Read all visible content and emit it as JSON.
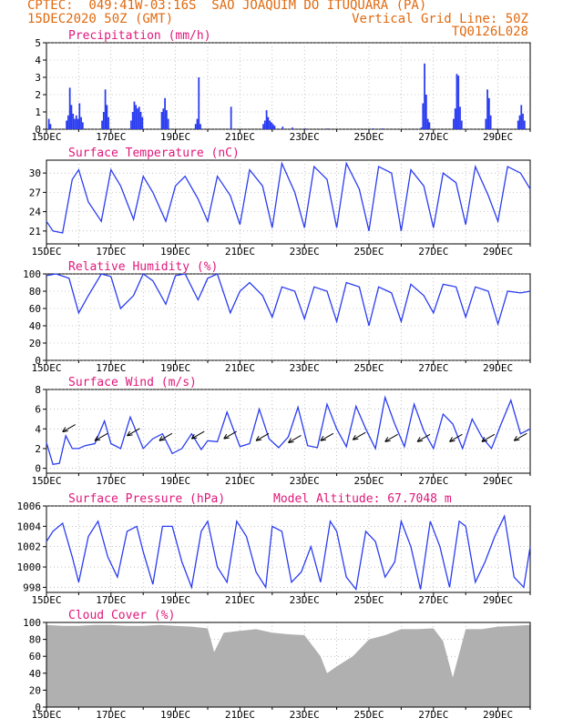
{
  "header": {
    "left1": "CPTEC:  049:41W-03:16S  SAO JOAQUIM DO ITUQUARA (PA)",
    "left2": "15DEC2020 50Z (GMT)",
    "right2": "Vertical Grid Line: 50Z",
    "right3": "TQ0126L028"
  },
  "colors": {
    "header": "#e06a10",
    "title": "#e0187a",
    "line": "#2a3cf0",
    "cloud": "#b0b0b0",
    "grid": "#9a9a9a"
  },
  "x_labels": [
    "15DEC",
    "17DEC",
    "19DEC",
    "21DEC",
    "23DEC",
    "25DEC",
    "27DEC",
    "29DEC"
  ],
  "chart_data": [
    {
      "type": "bar",
      "title": "Precipitation (mm/h)",
      "ylim": [
        0,
        5
      ],
      "yticks": [
        0,
        1,
        2,
        3,
        4,
        5
      ],
      "x_range": [
        0,
        15
      ],
      "bars": [
        [
          0.05,
          0.6
        ],
        [
          0.1,
          0.3
        ],
        [
          0.6,
          0.5
        ],
        [
          0.65,
          0.8
        ],
        [
          0.7,
          2.4
        ],
        [
          0.75,
          1.4
        ],
        [
          0.8,
          0.9
        ],
        [
          0.85,
          0.6
        ],
        [
          0.9,
          0.8
        ],
        [
          0.95,
          0.6
        ],
        [
          1.0,
          1.5
        ],
        [
          1.05,
          0.7
        ],
        [
          1.1,
          0.4
        ],
        [
          1.7,
          0.5
        ],
        [
          1.75,
          1.0
        ],
        [
          1.8,
          2.3
        ],
        [
          1.85,
          1.4
        ],
        [
          1.9,
          0.7
        ],
        [
          2.6,
          0.5
        ],
        [
          2.65,
          1.0
        ],
        [
          2.7,
          1.6
        ],
        [
          2.75,
          1.4
        ],
        [
          2.8,
          1.2
        ],
        [
          2.85,
          1.3
        ],
        [
          2.9,
          1.0
        ],
        [
          2.95,
          0.7
        ],
        [
          3.55,
          1.0
        ],
        [
          3.6,
          1.2
        ],
        [
          3.65,
          1.8
        ],
        [
          3.7,
          1.1
        ],
        [
          3.75,
          0.6
        ],
        [
          4.6,
          0.3
        ],
        [
          4.65,
          0.6
        ],
        [
          4.7,
          3.0
        ],
        [
          4.75,
          0.3
        ],
        [
          5.7,
          1.3
        ],
        [
          6.7,
          0.3
        ],
        [
          6.75,
          0.5
        ],
        [
          6.8,
          1.1
        ],
        [
          6.85,
          0.7
        ],
        [
          6.9,
          0.5
        ],
        [
          6.95,
          0.4
        ],
        [
          7.0,
          0.3
        ],
        [
          7.05,
          0.2
        ],
        [
          7.3,
          0.15
        ],
        [
          7.6,
          0.1
        ],
        [
          8.0,
          0.05
        ],
        [
          8.7,
          0.05
        ],
        [
          10.1,
          0.05
        ],
        [
          10.4,
          0.05
        ],
        [
          11.6,
          0.1
        ],
        [
          11.65,
          1.5
        ],
        [
          11.7,
          3.8
        ],
        [
          11.75,
          2.0
        ],
        [
          11.8,
          0.6
        ],
        [
          11.85,
          0.4
        ],
        [
          12.6,
          0.6
        ],
        [
          12.65,
          1.2
        ],
        [
          12.7,
          3.2
        ],
        [
          12.75,
          3.1
        ],
        [
          12.8,
          1.3
        ],
        [
          12.85,
          0.5
        ],
        [
          13.6,
          0.6
        ],
        [
          13.65,
          2.3
        ],
        [
          13.7,
          1.8
        ],
        [
          13.75,
          0.8
        ],
        [
          14.6,
          0.5
        ],
        [
          14.65,
          0.8
        ],
        [
          14.7,
          1.4
        ],
        [
          14.75,
          0.9
        ],
        [
          14.8,
          0.5
        ]
      ]
    },
    {
      "type": "line",
      "title": "Surface Temperature (nC)",
      "ylim": [
        19,
        32
      ],
      "yticks": [
        21,
        24,
        27,
        30
      ],
      "x": [
        0,
        0.2,
        0.5,
        0.8,
        1.0,
        1.3,
        1.7,
        2.0,
        2.3,
        2.7,
        3.0,
        3.3,
        3.7,
        4.0,
        4.3,
        4.7,
        5.0,
        5.3,
        5.7,
        6.0,
        6.3,
        6.7,
        7.0,
        7.3,
        7.7,
        8.0,
        8.3,
        8.7,
        9.0,
        9.3,
        9.7,
        10.0,
        10.3,
        10.7,
        11.0,
        11.3,
        11.7,
        12.0,
        12.3,
        12.7,
        13.0,
        13.3,
        13.7,
        14.0,
        14.3,
        14.7,
        15.0
      ],
      "y": [
        22.5,
        21.0,
        20.7,
        29.0,
        30.5,
        25.5,
        22.5,
        30.5,
        28.0,
        22.8,
        29.5,
        27.0,
        22.5,
        28.0,
        29.5,
        26.0,
        22.5,
        29.5,
        26.5,
        22.0,
        30.5,
        28.0,
        21.5,
        31.5,
        27.0,
        21.5,
        31.0,
        29.0,
        21.5,
        31.5,
        27.5,
        21.0,
        31.0,
        30.0,
        21.0,
        30.5,
        28.0,
        21.5,
        30.0,
        28.5,
        22.0,
        31.0,
        26.5,
        22.5,
        31.0,
        30.0,
        27.5
      ]
    },
    {
      "type": "line",
      "title": "Relative Humidity (%)",
      "ylim": [
        0,
        100
      ],
      "yticks": [
        0,
        20,
        40,
        60,
        80,
        100
      ],
      "x": [
        0,
        0.3,
        0.7,
        1.0,
        1.3,
        1.7,
        2.0,
        2.3,
        2.7,
        3.0,
        3.3,
        3.7,
        4.0,
        4.3,
        4.7,
        5.0,
        5.3,
        5.7,
        6.0,
        6.3,
        6.7,
        7.0,
        7.3,
        7.7,
        8.0,
        8.3,
        8.7,
        9.0,
        9.3,
        9.7,
        10.0,
        10.3,
        10.7,
        11.0,
        11.3,
        11.7,
        12.0,
        12.3,
        12.7,
        13.0,
        13.3,
        13.7,
        14.0,
        14.3,
        14.7,
        15.0
      ],
      "y": [
        98,
        100,
        95,
        55,
        75,
        100,
        97,
        60,
        75,
        100,
        92,
        65,
        98,
        100,
        70,
        95,
        100,
        55,
        80,
        90,
        75,
        50,
        85,
        80,
        48,
        85,
        80,
        45,
        90,
        85,
        40,
        85,
        78,
        45,
        88,
        75,
        55,
        88,
        85,
        50,
        85,
        80,
        42,
        80,
        78,
        80
      ]
    },
    {
      "type": "line",
      "title": "Surface Wind (m/s)",
      "ylim": [
        -0.5,
        8
      ],
      "yticks": [
        0,
        2,
        4,
        6,
        8
      ],
      "x": [
        0,
        0.2,
        0.4,
        0.6,
        0.8,
        1.0,
        1.2,
        1.5,
        1.8,
        2.0,
        2.3,
        2.6,
        3.0,
        3.3,
        3.6,
        3.9,
        4.2,
        4.5,
        4.8,
        5.0,
        5.3,
        5.6,
        6.0,
        6.3,
        6.6,
        6.9,
        7.2,
        7.5,
        7.8,
        8.1,
        8.4,
        8.7,
        9.0,
        9.3,
        9.6,
        9.9,
        10.2,
        10.5,
        10.8,
        11.1,
        11.4,
        11.7,
        12.0,
        12.3,
        12.6,
        12.9,
        13.2,
        13.5,
        13.8,
        14.1,
        14.4,
        14.7,
        15.0
      ],
      "y": [
        2.6,
        0.4,
        0.5,
        3.3,
        2.0,
        2.0,
        2.3,
        2.5,
        4.8,
        2.5,
        2.0,
        5.2,
        2.0,
        3.0,
        3.5,
        1.5,
        2.0,
        3.5,
        1.9,
        2.8,
        2.7,
        5.7,
        2.2,
        2.5,
        6.0,
        3.0,
        2.1,
        3.2,
        6.2,
        2.3,
        2.1,
        6.5,
        4.0,
        2.2,
        6.3,
        4.0,
        2.0,
        7.2,
        4.5,
        2.2,
        6.5,
        3.8,
        2.0,
        5.5,
        4.5,
        2.0,
        5.0,
        3.2,
        2.0,
        4.5,
        6.9,
        3.5,
        4.0
      ],
      "arrows_x": [
        0.5,
        1.5,
        2.5,
        3.5,
        4.5,
        5.5,
        6.5,
        7.5,
        8.5,
        9.5,
        10.5,
        11.5,
        12.5,
        13.5,
        14.5
      ],
      "arrows_y": [
        3.7,
        2.8,
        3.3,
        2.8,
        3.0,
        3.0,
        2.8,
        2.6,
        2.8,
        2.9,
        2.7,
        2.7,
        2.7,
        2.7,
        2.8
      ]
    },
    {
      "type": "line",
      "title": "Surface Pressure (hPa)",
      "annotation": "Model Altitude: 67.7048 m",
      "ylim": [
        997.5,
        1006
      ],
      "yticks": [
        998,
        1000,
        1002,
        1004,
        1006
      ],
      "x": [
        0,
        0.2,
        0.5,
        0.8,
        1.0,
        1.3,
        1.6,
        1.9,
        2.2,
        2.5,
        2.8,
        3.0,
        3.3,
        3.6,
        3.9,
        4.2,
        4.5,
        4.8,
        5.0,
        5.3,
        5.6,
        5.9,
        6.2,
        6.5,
        6.8,
        7.0,
        7.3,
        7.6,
        7.9,
        8.2,
        8.5,
        8.8,
        9.0,
        9.3,
        9.6,
        9.9,
        10.2,
        10.5,
        10.8,
        11.0,
        11.3,
        11.6,
        11.9,
        12.2,
        12.5,
        12.8,
        13.0,
        13.3,
        13.6,
        13.9,
        14.2,
        14.5,
        14.8,
        15.0
      ],
      "y": [
        1002.5,
        1003.5,
        1004.3,
        1001.0,
        998.5,
        1003.0,
        1004.5,
        1001.0,
        999.0,
        1003.5,
        1004.0,
        1001.5,
        998.3,
        1004.0,
        1004.0,
        1000.5,
        998.0,
        1003.5,
        1004.5,
        1000.0,
        998.5,
        1004.5,
        1003.0,
        999.5,
        998.0,
        1004.0,
        1003.5,
        998.5,
        999.5,
        1002.0,
        998.5,
        1004.5,
        1003.5,
        999.0,
        997.8,
        1003.5,
        1002.5,
        999.0,
        1000.5,
        1004.5,
        1002.0,
        997.8,
        1004.5,
        1002.0,
        998.0,
        1004.5,
        1004.0,
        998.5,
        1000.5,
        1003.0,
        1005.0,
        999.0,
        998.0,
        1002.0
      ]
    },
    {
      "type": "area",
      "title": "Cloud Cover (%)",
      "ylim": [
        0,
        100
      ],
      "yticks": [
        0,
        20,
        40,
        60,
        80,
        100
      ],
      "x": [
        0,
        0.5,
        1.0,
        1.5,
        2.0,
        2.5,
        3.0,
        3.5,
        4.0,
        4.5,
        5.0,
        5.2,
        5.5,
        6.0,
        6.5,
        7.0,
        7.5,
        8.0,
        8.3,
        8.5,
        8.7,
        9.0,
        9.5,
        10.0,
        10.5,
        11.0,
        11.5,
        12.0,
        12.3,
        12.6,
        13.0,
        13.5,
        14.0,
        14.5,
        15.0
      ],
      "y": [
        97,
        96,
        96,
        97,
        97,
        96,
        96,
        97,
        96,
        95,
        93,
        65,
        88,
        90,
        92,
        88,
        86,
        85,
        70,
        60,
        40,
        48,
        60,
        80,
        85,
        92,
        92,
        93,
        78,
        35,
        92,
        92,
        95,
        96,
        97
      ]
    }
  ]
}
